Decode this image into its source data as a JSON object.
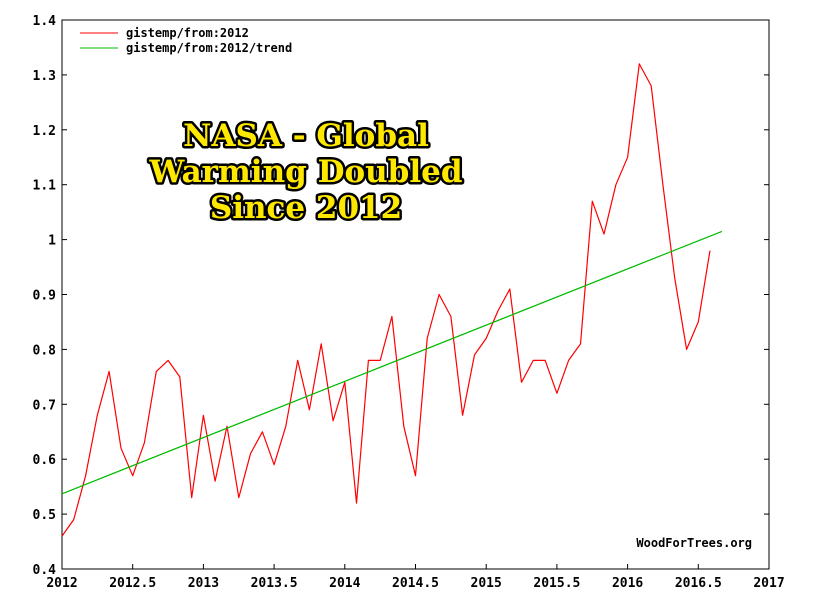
{
  "chart_data": {
    "type": "line",
    "xlim": [
      2012,
      2017
    ],
    "ylim": [
      0.4,
      1.4
    ],
    "x_ticks": [
      2012,
      2012.5,
      2013,
      2013.5,
      2014,
      2014.5,
      2015,
      2015.5,
      2016,
      2016.5,
      2017
    ],
    "x_tick_labels": [
      "2012",
      "2012.5",
      "2013",
      "2013.5",
      "2014",
      "2014.5",
      "2015",
      "2015.5",
      "2016",
      "2016.5",
      "2017"
    ],
    "y_ticks": [
      0.4,
      0.5,
      0.6,
      0.7,
      0.8,
      0.9,
      1.0,
      1.1,
      1.2,
      1.3,
      1.4
    ],
    "y_tick_labels": [
      "0.4",
      "0.5",
      "0.6",
      "0.7",
      "0.8",
      "0.9",
      "1",
      "1.1",
      "1.2",
      "1.3",
      "1.4"
    ],
    "grid": false,
    "legend_position": "top-left",
    "series": [
      {
        "name": "gistemp/from:2012",
        "color": "#ff0000",
        "x": [
          2012.0,
          2012.083,
          2012.167,
          2012.25,
          2012.333,
          2012.417,
          2012.5,
          2012.583,
          2012.667,
          2012.75,
          2012.833,
          2012.917,
          2013.0,
          2013.083,
          2013.167,
          2013.25,
          2013.333,
          2013.417,
          2013.5,
          2013.583,
          2013.667,
          2013.75,
          2013.833,
          2013.917,
          2014.0,
          2014.083,
          2014.167,
          2014.25,
          2014.333,
          2014.417,
          2014.5,
          2014.583,
          2014.667,
          2014.75,
          2014.833,
          2014.917,
          2015.0,
          2015.083,
          2015.167,
          2015.25,
          2015.333,
          2015.417,
          2015.5,
          2015.583,
          2015.667,
          2015.75,
          2015.833,
          2015.917,
          2016.0,
          2016.083,
          2016.167,
          2016.25,
          2016.333,
          2016.417,
          2016.5,
          2016.583
        ],
        "values": [
          0.46,
          0.49,
          0.57,
          0.68,
          0.76,
          0.62,
          0.57,
          0.63,
          0.76,
          0.78,
          0.75,
          0.53,
          0.68,
          0.56,
          0.66,
          0.53,
          0.61,
          0.65,
          0.59,
          0.66,
          0.78,
          0.69,
          0.81,
          0.67,
          0.74,
          0.52,
          0.78,
          0.78,
          0.86,
          0.66,
          0.57,
          0.82,
          0.9,
          0.86,
          0.68,
          0.79,
          0.82,
          0.87,
          0.91,
          0.74,
          0.78,
          0.78,
          0.72,
          0.78,
          0.81,
          1.07,
          1.01,
          1.1,
          1.15,
          1.32,
          1.28,
          1.1,
          0.93,
          0.8,
          0.85,
          0.98
        ]
      },
      {
        "name": "gistemp/from:2012/trend",
        "color": "#00bb00",
        "x": [
          2012.0,
          2016.667
        ],
        "values": [
          0.537,
          1.015
        ]
      }
    ],
    "annotation": [
      "NASA - Global",
      "Warming Doubled",
      "Since 2012"
    ],
    "watermark": "WoodForTrees.org"
  }
}
